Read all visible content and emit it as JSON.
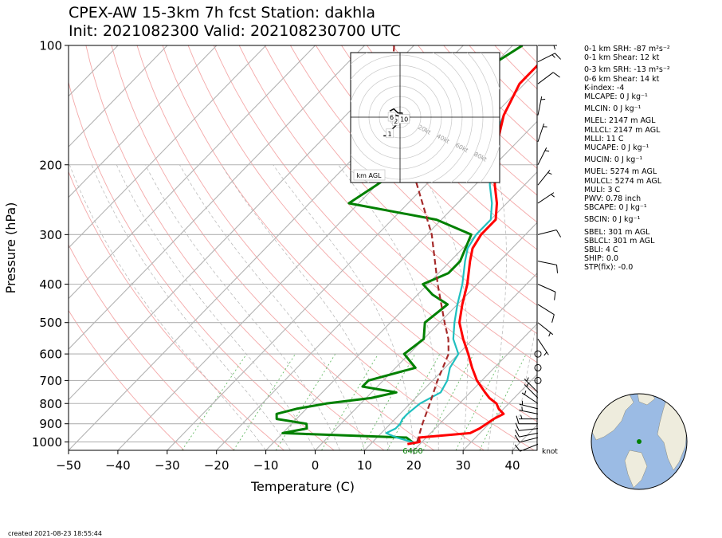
{
  "title_line1": "CPEX-AW 15-3km  7h fcst  Station: dakhla",
  "title_line2": "Init: 2021082300  Valid: 202108230700 UTC",
  "created": "created 2021-08-23 18:55:44",
  "stats": [
    {
      "text": "0-1 km SRH: -87 m²s⁻²",
      "gap": false
    },
    {
      "text": "0-1 km Shear: 12 kt",
      "gap": false
    },
    {
      "text": "0-3 km SRH: -13 m²s⁻²",
      "gap": true
    },
    {
      "text": "0-6 km Shear: 14 kt",
      "gap": false
    },
    {
      "text": "K-index: -4",
      "gap": false
    },
    {
      "text": "MLCAPE: 0 J kg⁻¹",
      "gap": false
    },
    {
      "text": "MLCIN: 0 J kg⁻¹",
      "gap": true
    },
    {
      "text": "MLEL: 2147 m AGL",
      "gap": true
    },
    {
      "text": "MLLCL: 2147 m AGL",
      "gap": false
    },
    {
      "text": "MLLI: 11 C",
      "gap": false
    },
    {
      "text": "MUCAPE: 0 J kg⁻¹",
      "gap": false
    },
    {
      "text": "MUCIN: 0 J kg⁻¹",
      "gap": true
    },
    {
      "text": "MUEL: 5274 m AGL",
      "gap": true
    },
    {
      "text": "MULCL: 5274 m AGL",
      "gap": false
    },
    {
      "text": "MULI: 3 C",
      "gap": false
    },
    {
      "text": "PWV: 0.78 inch",
      "gap": false
    },
    {
      "text": "SBCAPE: 0 J kg⁻¹",
      "gap": false
    },
    {
      "text": "SBCIN: 0 J kg⁻¹",
      "gap": true
    },
    {
      "text": "SBEL: 301 m AGL",
      "gap": true
    },
    {
      "text": "SBLCL: 301 m AGL",
      "gap": false
    },
    {
      "text": "SBLI: 4 C",
      "gap": false
    },
    {
      "text": "SHIP: 0.0",
      "gap": false
    },
    {
      "text": "STP(fix): -0.0",
      "gap": false
    }
  ],
  "chart_data": {
    "type": "line",
    "subtype": "skew-T log-P",
    "xlabel": "Temperature (C)",
    "ylabel": "Pressure (hPa)",
    "xlim": [
      -50,
      45
    ],
    "ylim": [
      1050,
      100
    ],
    "yscale": "log",
    "x_ticks": [
      -50,
      -40,
      -30,
      -20,
      -10,
      0,
      10,
      20,
      30,
      40
    ],
    "y_ticks": [
      100,
      200,
      300,
      400,
      500,
      600,
      700,
      800,
      900,
      1000
    ],
    "grid": true,
    "colors": {
      "temperature": "#ff0000",
      "dewpoint": "#008000",
      "wetbulb": "#1fbfbf",
      "parcel": "#a52a2a"
    },
    "surface_label": "6460",
    "wind_unit_label": "knot",
    "series": [
      {
        "key": "temperature",
        "points": [
          [
            1013,
            17.5
          ],
          [
            1000,
            19.5
          ],
          [
            975,
            18.5
          ],
          [
            950,
            28
          ],
          [
            925,
            29
          ],
          [
            900,
            29.5
          ],
          [
            875,
            30
          ],
          [
            850,
            31
          ],
          [
            825,
            29
          ],
          [
            800,
            27.5
          ],
          [
            775,
            25
          ],
          [
            750,
            23
          ],
          [
            700,
            19
          ],
          [
            650,
            15.5
          ],
          [
            600,
            12
          ],
          [
            550,
            8
          ],
          [
            500,
            4
          ],
          [
            450,
            1
          ],
          [
            400,
            -2
          ],
          [
            350,
            -6
          ],
          [
            325,
            -8
          ],
          [
            300,
            -9
          ],
          [
            275,
            -9
          ],
          [
            250,
            -12
          ],
          [
            225,
            -16
          ],
          [
            200,
            -20
          ],
          [
            175,
            -24
          ],
          [
            150,
            -28
          ],
          [
            125,
            -31
          ],
          [
            110,
            -31
          ],
          [
            100,
            -29
          ]
        ]
      },
      {
        "key": "dewpoint",
        "points": [
          [
            1013,
            19
          ],
          [
            1000,
            18
          ],
          [
            975,
            16
          ],
          [
            950,
            -10
          ],
          [
            925,
            -6
          ],
          [
            900,
            -7
          ],
          [
            875,
            -14
          ],
          [
            850,
            -15
          ],
          [
            825,
            -12
          ],
          [
            800,
            -7
          ],
          [
            775,
            1
          ],
          [
            750,
            5
          ],
          [
            725,
            -3
          ],
          [
            700,
            -3
          ],
          [
            650,
            4
          ],
          [
            600,
            -1
          ],
          [
            550,
            0
          ],
          [
            500,
            -3
          ],
          [
            450,
            -2
          ],
          [
            425,
            -7
          ],
          [
            400,
            -11
          ],
          [
            375,
            -8
          ],
          [
            350,
            -8
          ],
          [
            300,
            -11
          ],
          [
            275,
            -21
          ],
          [
            250,
            -42
          ],
          [
            225,
            -40
          ],
          [
            200,
            -38
          ],
          [
            175,
            -38
          ],
          [
            150,
            -39
          ],
          [
            125,
            -40
          ],
          [
            110,
            -40
          ],
          [
            100,
            -38
          ]
        ]
      },
      {
        "key": "wetbulb",
        "points": [
          [
            1013,
            18.5
          ],
          [
            1000,
            18
          ],
          [
            975,
            14
          ],
          [
            950,
            11
          ],
          [
            925,
            12
          ],
          [
            900,
            12
          ],
          [
            875,
            11.5
          ],
          [
            850,
            11.5
          ],
          [
            800,
            12
          ],
          [
            750,
            14
          ],
          [
            700,
            13
          ],
          [
            650,
            11
          ],
          [
            600,
            10
          ],
          [
            550,
            6
          ],
          [
            500,
            3
          ],
          [
            450,
            0
          ],
          [
            400,
            -3
          ],
          [
            350,
            -7
          ],
          [
            325,
            -9
          ],
          [
            300,
            -10
          ],
          [
            275,
            -10
          ],
          [
            250,
            -13
          ],
          [
            225,
            -17
          ],
          [
            200,
            -21
          ],
          [
            175,
            -25
          ],
          [
            150,
            -28
          ],
          [
            125,
            -31
          ],
          [
            110,
            -31
          ],
          [
            100,
            -29
          ]
        ]
      },
      {
        "key": "parcel",
        "points": [
          [
            1000,
            19
          ],
          [
            900,
            16.5
          ],
          [
            800,
            14
          ],
          [
            700,
            11
          ],
          [
            600,
            8
          ],
          [
            550,
            5
          ],
          [
            500,
            1
          ],
          [
            400,
            -8
          ],
          [
            300,
            -19
          ],
          [
            200,
            -37
          ],
          [
            150,
            -50
          ],
          [
            125,
            -57
          ],
          [
            100,
            -64
          ]
        ]
      }
    ],
    "wind_barbs": [
      {
        "pressure": 1013,
        "u": 10,
        "v": 4
      },
      {
        "pressure": 975,
        "u": 12,
        "v": 3
      },
      {
        "pressure": 950,
        "u": 10,
        "v": 2
      },
      {
        "pressure": 925,
        "u": 9,
        "v": 1
      },
      {
        "pressure": 900,
        "u": 8,
        "v": 0
      },
      {
        "pressure": 875,
        "u": 6,
        "v": 0
      },
      {
        "pressure": 850,
        "u": 5,
        "v": -1
      },
      {
        "pressure": 825,
        "u": 4,
        "v": -1
      },
      {
        "pressure": 800,
        "u": 3,
        "v": -2
      },
      {
        "pressure": 775,
        "u": 2,
        "v": -2
      },
      {
        "pressure": 750,
        "u": 2,
        "v": -2
      },
      {
        "pressure": 700,
        "u": 2,
        "v": 0
      },
      {
        "pressure": 650,
        "u": -1,
        "v": 1
      },
      {
        "pressure": 600,
        "u": 0,
        "v": 0
      },
      {
        "pressure": 550,
        "u": -2,
        "v": 3
      },
      {
        "pressure": 500,
        "u": -5,
        "v": 4
      },
      {
        "pressure": 450,
        "u": -8,
        "v": 5
      },
      {
        "pressure": 400,
        "u": -9,
        "v": 4
      },
      {
        "pressure": 350,
        "u": -10,
        "v": 2
      },
      {
        "pressure": 300,
        "u": -8,
        "v": -2
      },
      {
        "pressure": 250,
        "u": -6,
        "v": -4
      },
      {
        "pressure": 225,
        "u": -4,
        "v": -5
      },
      {
        "pressure": 200,
        "u": -3,
        "v": -6
      },
      {
        "pressure": 175,
        "u": -2,
        "v": -6
      },
      {
        "pressure": 150,
        "u": -1,
        "v": -5
      },
      {
        "pressure": 125,
        "u": -8,
        "v": -6
      },
      {
        "pressure": 110,
        "u": -12,
        "v": -6
      },
      {
        "pressure": 100,
        "u": -6,
        "v": 0
      }
    ],
    "hodograph": {
      "label": "km AGL",
      "ring_labels": [
        "20kt",
        "40kt",
        "60kt",
        "80kt"
      ],
      "height_labels": [
        {
          "label": "1",
          "u": -5,
          "v": -8
        },
        {
          "label": "2",
          "u": -2,
          "v": -2
        },
        {
          "label": "6",
          "u": -4,
          "v": 0
        },
        {
          "label": "10",
          "u": 2,
          "v": -1
        }
      ],
      "trace": [
        [
          -8,
          -9
        ],
        [
          -5,
          -9
        ],
        [
          -4,
          -6
        ],
        [
          -2,
          -4
        ],
        [
          0,
          -2
        ],
        [
          -1,
          -1
        ],
        [
          -3,
          0
        ],
        [
          -2,
          1
        ],
        [
          1,
          0
        ],
        [
          1,
          2
        ],
        [
          -1,
          2
        ],
        [
          -3,
          4
        ],
        [
          -5,
          3
        ]
      ]
    },
    "globe_marker": "station location"
  }
}
